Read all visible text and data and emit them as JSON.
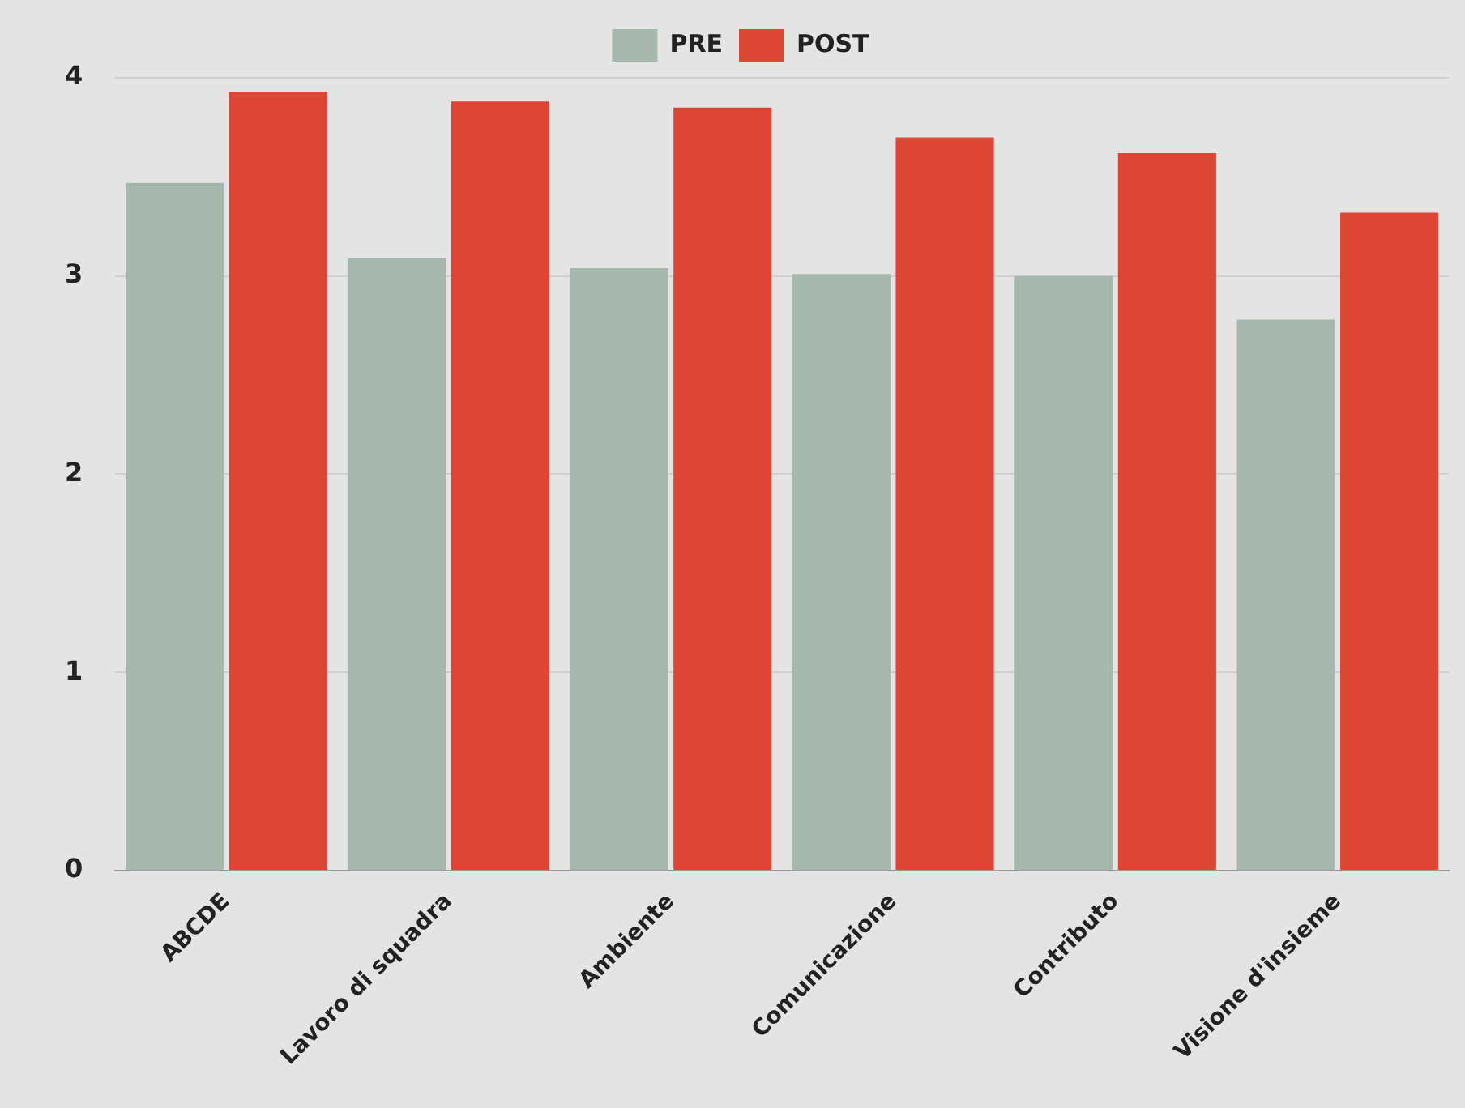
{
  "chart_data": {
    "type": "bar",
    "categories": [
      "ABCDE",
      "Lavoro di squadra",
      "Ambiente",
      "Comunicazione",
      "Contributo",
      "Visione d'insieme"
    ],
    "series": [
      {
        "name": "PRE",
        "color": "#a6b8ae",
        "values": [
          3.47,
          3.09,
          3.04,
          3.01,
          3.0,
          2.78
        ]
      },
      {
        "name": "POST",
        "color": "#dd4634",
        "values": [
          3.93,
          3.88,
          3.85,
          3.7,
          3.62,
          3.32
        ]
      }
    ],
    "ylim": [
      0,
      4
    ],
    "yticks": [
      0,
      1,
      2,
      3,
      4
    ],
    "grid": "y",
    "legend": "top"
  }
}
